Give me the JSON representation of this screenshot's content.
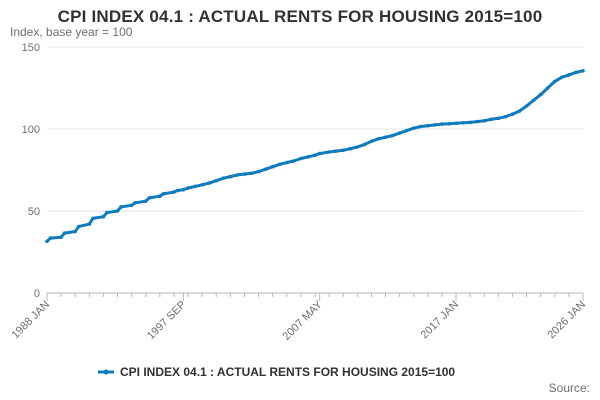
{
  "header": {
    "title": "CPI INDEX 04.1 : ACTUAL RENTS FOR HOUSING 2015=100",
    "subtitle": "Index, base year = 100"
  },
  "footer": {
    "source_label": "Source:"
  },
  "colors": {
    "series": "#0f7bbd",
    "grid": "#e6e6e6",
    "axis": "#b7b7b7",
    "text": "#6f6f6f"
  },
  "chart_data": {
    "type": "line",
    "title": "CPI INDEX 04.1 : ACTUAL RENTS FOR HOUSING 2015=100",
    "subtitle": "Index, base year = 100",
    "xlabel": "",
    "ylabel": "",
    "x_tick_labels": [
      "1988 JAN",
      "1997 SEP",
      "2007 MAY",
      "2017 JAN",
      "2026 JAN"
    ],
    "x_tick_values": [
      1988.0,
      1997.67,
      2007.33,
      2017.0,
      2026.0
    ],
    "xlim": [
      1988.0,
      2026.0
    ],
    "y_ticks": [
      0,
      50,
      100,
      150
    ],
    "ylim": [
      0,
      150
    ],
    "grid": true,
    "legend_position": "bottom",
    "series": [
      {
        "name": "CPI INDEX 04.1 : ACTUAL RENTS FOR HOUSING 2015=100",
        "x": [
          1988.0,
          1988.25,
          1989.0,
          1989.25,
          1990.0,
          1990.25,
          1991.0,
          1991.25,
          1992.0,
          1992.25,
          1993.0,
          1993.25,
          1994.0,
          1994.25,
          1995.0,
          1995.25,
          1996.0,
          1996.25,
          1997.0,
          1997.25,
          1997.67,
          1998.0,
          1998.5,
          1999.0,
          1999.5,
          2000.0,
          2000.5,
          2001.0,
          2001.5,
          2002.0,
          2002.5,
          2003.0,
          2003.5,
          2004.0,
          2004.5,
          2005.0,
          2005.5,
          2006.0,
          2006.5,
          2007.0,
          2007.33,
          2008.0,
          2008.5,
          2009.0,
          2009.5,
          2010.0,
          2010.5,
          2011.0,
          2011.5,
          2012.0,
          2012.5,
          2013.0,
          2013.5,
          2014.0,
          2014.5,
          2015.0,
          2015.5,
          2016.0,
          2016.5,
          2017.0,
          2017.5,
          2018.0,
          2018.5,
          2019.0,
          2019.5,
          2020.0,
          2020.5,
          2021.0,
          2021.5,
          2022.0,
          2022.5,
          2023.0,
          2023.5,
          2024.0,
          2024.5,
          2025.0,
          2025.5,
          2026.0
        ],
        "values": [
          31.5,
          33.5,
          34.0,
          36.5,
          37.5,
          40.5,
          42.0,
          45.5,
          46.5,
          49.0,
          50.0,
          52.5,
          53.5,
          55.0,
          56.0,
          58.0,
          59.0,
          60.5,
          61.5,
          62.5,
          63.0,
          64.0,
          65.0,
          66.0,
          67.0,
          68.5,
          70.0,
          71.0,
          72.0,
          72.5,
          73.0,
          74.0,
          75.5,
          77.0,
          78.5,
          79.5,
          80.5,
          82.0,
          83.0,
          84.0,
          85.0,
          86.0,
          86.5,
          87.0,
          88.0,
          89.0,
          90.5,
          92.5,
          94.0,
          95.0,
          96.0,
          97.5,
          99.0,
          100.5,
          101.5,
          102.0,
          102.5,
          103.0,
          103.2,
          103.5,
          103.8,
          104.0,
          104.5,
          105.0,
          106.0,
          106.5,
          107.5,
          109.0,
          111.0,
          114.0,
          117.5,
          121.0,
          125.0,
          129.0,
          131.5,
          133.0,
          134.5,
          135.5
        ]
      }
    ]
  }
}
